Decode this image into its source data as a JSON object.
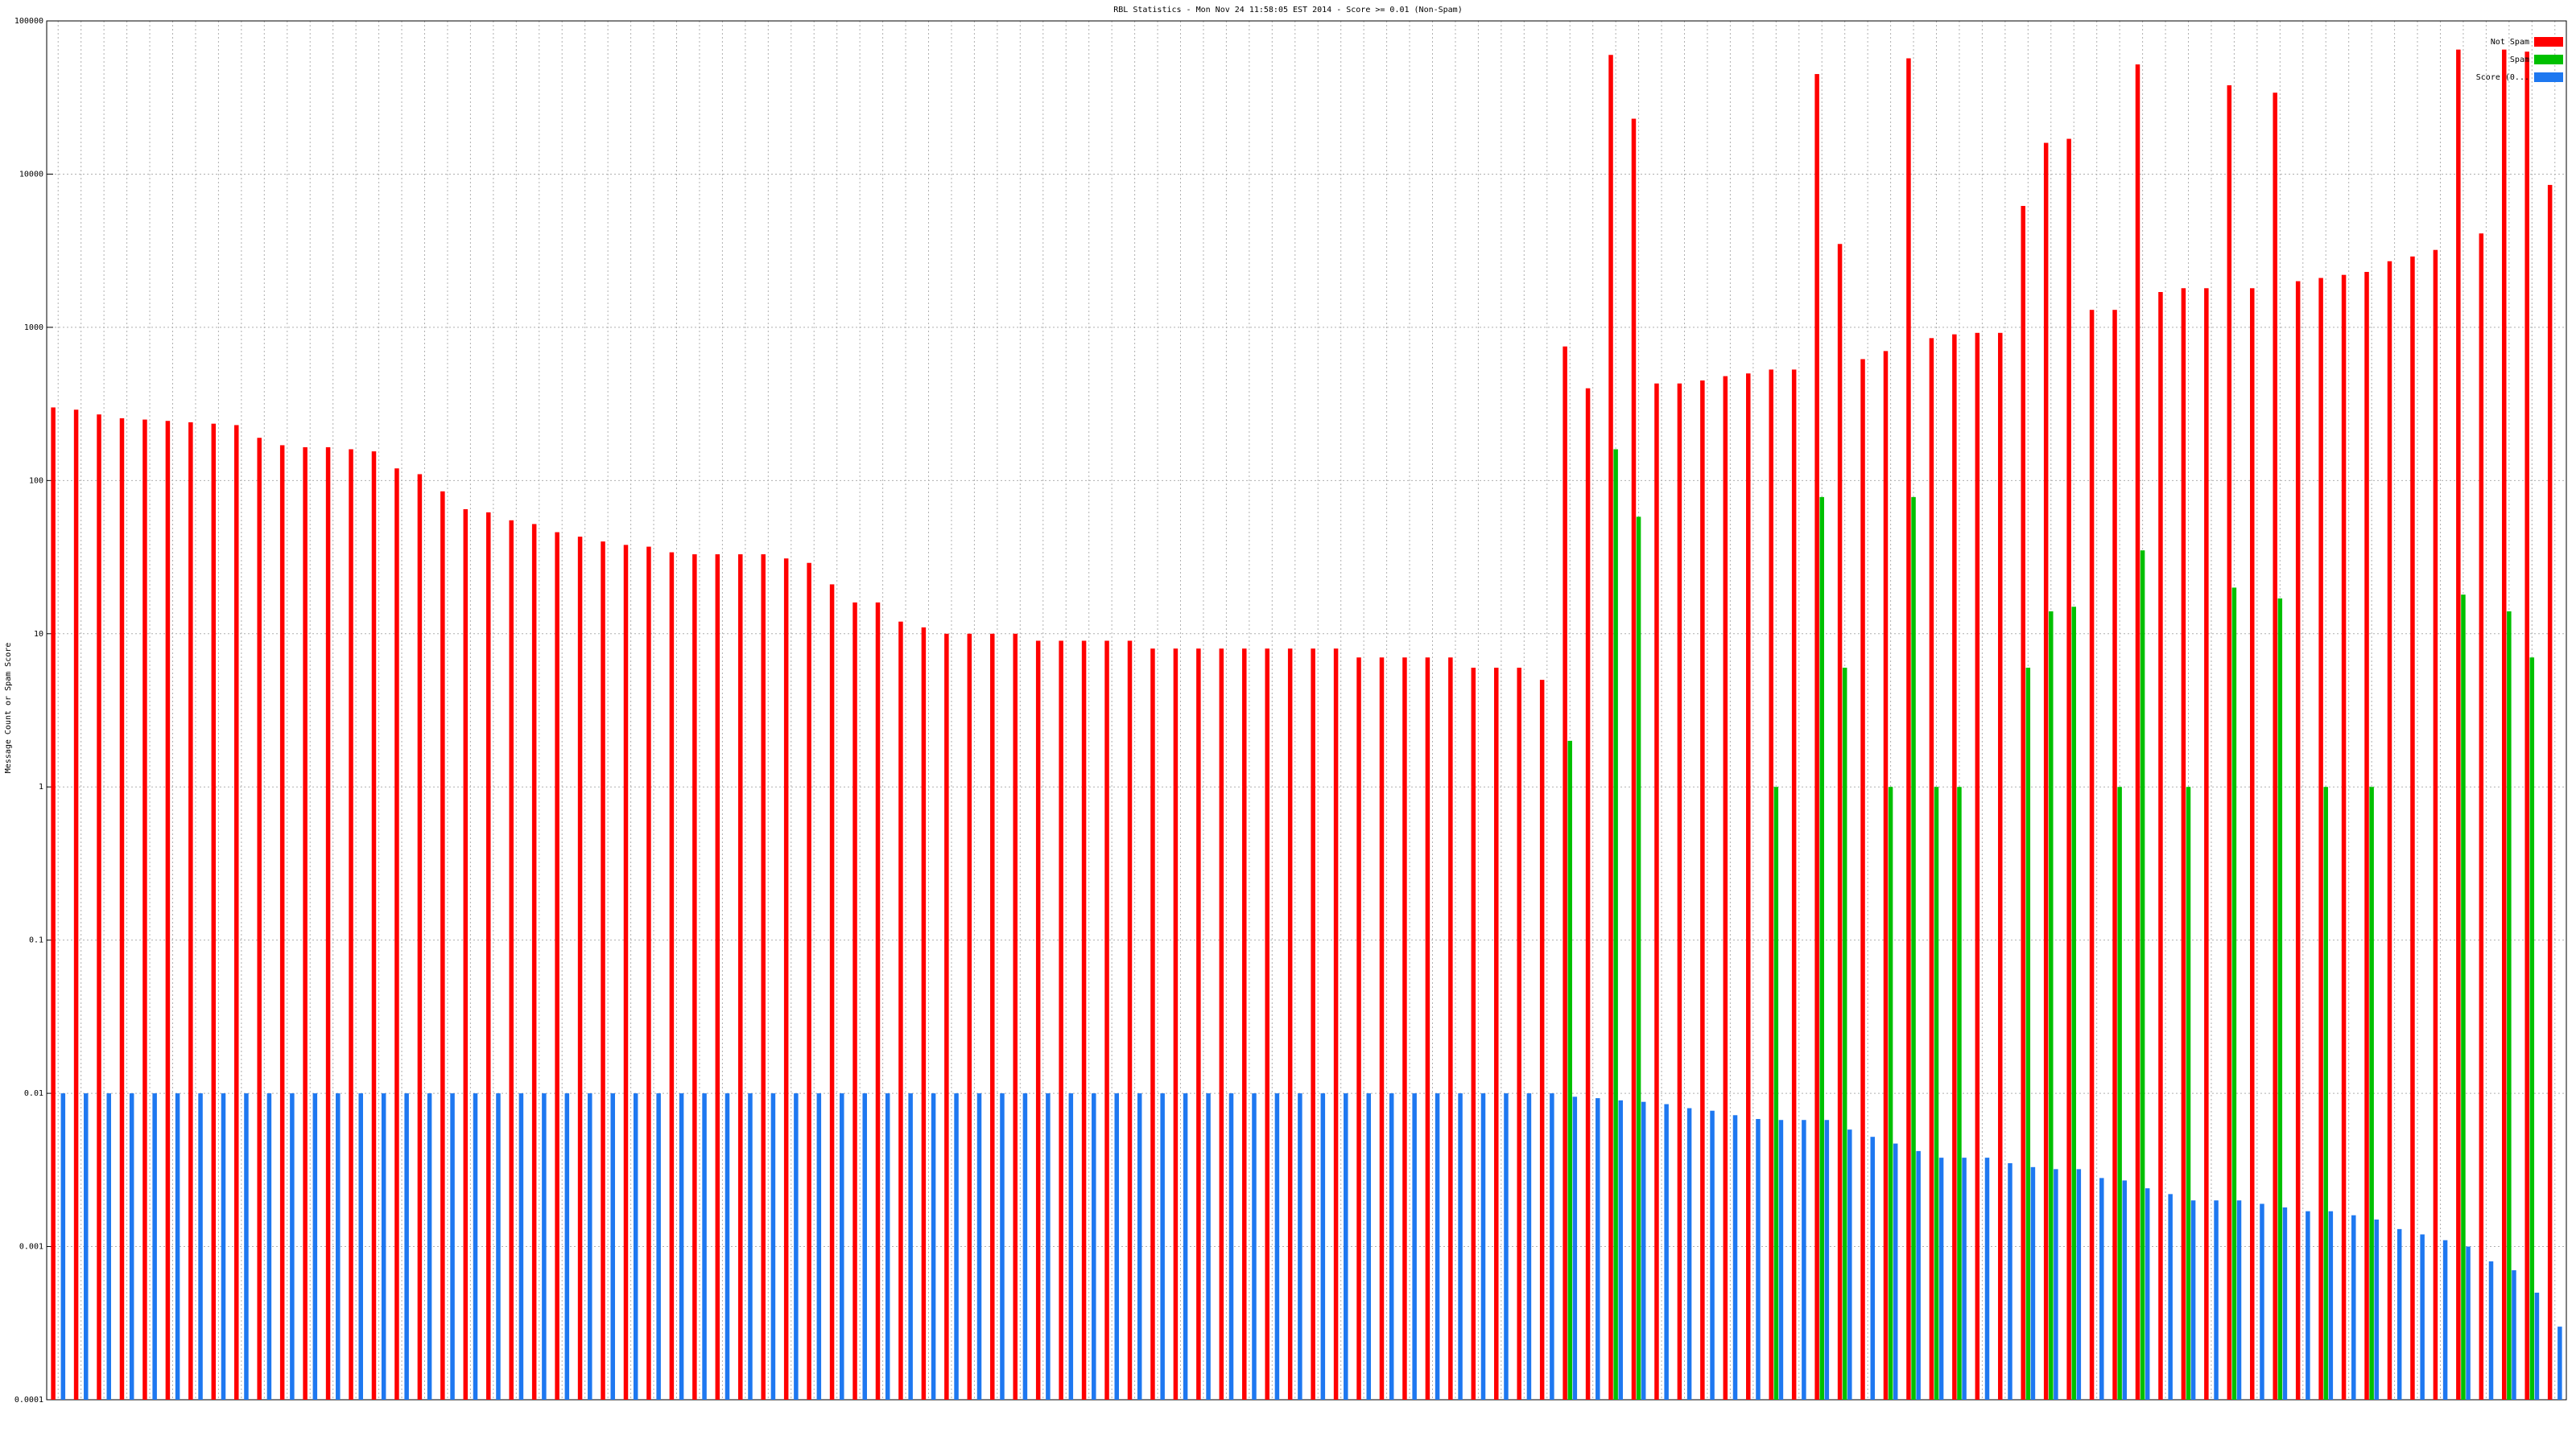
{
  "chart_data": {
    "type": "bar",
    "title": "RBL Statistics - Mon Nov 24 11:58:05 EST 2014 - Score >= 0.01 (Non-Spam)",
    "y_label": "Message Count or Spam Score",
    "log_y": true,
    "grid": true,
    "legend": "upper right",
    "ylim": [
      0.0001,
      100000
    ],
    "yticks": [
      0.0001,
      0.001,
      0.01,
      0.1,
      1,
      10,
      100,
      1000,
      10000,
      100000
    ],
    "categories": [
      null,
      null,
      null,
      null,
      null,
      null,
      null,
      null,
      null,
      null,
      null,
      null,
      null,
      null,
      null,
      null,
      null,
      null,
      null,
      null,
      null,
      null,
      null,
      null,
      null,
      null,
      null,
      null,
      null,
      null,
      null,
      null,
      null,
      null,
      null,
      null,
      null,
      null,
      null,
      null,
      null,
      null,
      null,
      null,
      null,
      null,
      null,
      null,
      null,
      null,
      null,
      null,
      null,
      null,
      null,
      null,
      null,
      null,
      null,
      null,
      null,
      null,
      null,
      null,
      null,
      null,
      null,
      null,
      null,
      null,
      null,
      null,
      null,
      null,
      null,
      null,
      null,
      null,
      null,
      null,
      null,
      null,
      null,
      null,
      null,
      null,
      null,
      null,
      null,
      null,
      null,
      null,
      null,
      null,
      null,
      null,
      null,
      null,
      null,
      null,
      null,
      null,
      null,
      null,
      null,
      null,
      null,
      null,
      null,
      null
    ],
    "series": [
      {
        "name": "Not Spam",
        "color": "#ff0000",
        "values": [
          300,
          290,
          270,
          255,
          250,
          245,
          240,
          235,
          230,
          190,
          170,
          165,
          165,
          160,
          155,
          120,
          110,
          85,
          65,
          62,
          55,
          52,
          46,
          43,
          40,
          38,
          37,
          34,
          33,
          33,
          33,
          33,
          31,
          29,
          21,
          16,
          16,
          12,
          11,
          10,
          10,
          10,
          10,
          9,
          9,
          9,
          9,
          9,
          8,
          8,
          8,
          8,
          8,
          8,
          8,
          8,
          8,
          7,
          7,
          7,
          7,
          7,
          6,
          6,
          6,
          5,
          750,
          400,
          60000,
          23000,
          430,
          430,
          450,
          480,
          500,
          530,
          530,
          45000,
          3500,
          620,
          700,
          57000,
          850,
          900,
          920,
          920,
          6200,
          16000,
          17000,
          1300,
          1300,
          52000,
          1700,
          1800,
          1800,
          38000,
          1800,
          34000,
          2000,
          2100,
          2200,
          2300,
          2700,
          2900,
          3200,
          65000,
          4100,
          65000,
          63000,
          8500
        ]
      },
      {
        "name": "Spam",
        "color": "#00c000",
        "values": [
          null,
          null,
          null,
          null,
          null,
          null,
          null,
          null,
          null,
          null,
          null,
          null,
          null,
          null,
          null,
          null,
          null,
          null,
          null,
          null,
          null,
          null,
          null,
          null,
          null,
          null,
          null,
          null,
          null,
          null,
          null,
          null,
          null,
          null,
          null,
          null,
          null,
          null,
          null,
          null,
          null,
          null,
          null,
          null,
          null,
          null,
          null,
          null,
          null,
          null,
          null,
          null,
          null,
          null,
          null,
          null,
          null,
          null,
          null,
          null,
          null,
          null,
          null,
          null,
          null,
          null,
          2,
          null,
          160,
          58,
          null,
          null,
          null,
          null,
          null,
          1,
          null,
          78,
          6,
          null,
          1,
          78,
          1,
          1,
          null,
          null,
          6,
          14,
          15,
          null,
          1,
          35,
          null,
          1,
          null,
          20,
          null,
          17,
          null,
          1,
          null,
          1,
          null,
          null,
          null,
          18,
          null,
          14,
          7,
          null
        ]
      },
      {
        "name": "Score (0...",
        "color": "#1e78f0",
        "values": [
          0.01,
          0.01,
          0.01,
          0.01,
          0.01,
          0.01,
          0.01,
          0.01,
          0.01,
          0.01,
          0.01,
          0.01,
          0.01,
          0.01,
          0.01,
          0.01,
          0.01,
          0.01,
          0.01,
          0.01,
          0.01,
          0.01,
          0.01,
          0.01,
          0.01,
          0.01,
          0.01,
          0.01,
          0.01,
          0.01,
          0.01,
          0.01,
          0.01,
          0.01,
          0.01,
          0.01,
          0.01,
          0.01,
          0.01,
          0.01,
          0.01,
          0.01,
          0.01,
          0.01,
          0.01,
          0.01,
          0.01,
          0.01,
          0.01,
          0.01,
          0.01,
          0.01,
          0.01,
          0.01,
          0.01,
          0.01,
          0.01,
          0.01,
          0.01,
          0.01,
          0.01,
          0.01,
          0.01,
          0.01,
          0.01,
          0.01,
          0.0095,
          0.0093,
          0.009,
          0.0088,
          0.0085,
          0.008,
          0.0077,
          0.0072,
          0.0068,
          0.0067,
          0.0067,
          0.0067,
          0.0058,
          0.0052,
          0.0047,
          0.0042,
          0.0038,
          0.0038,
          0.0038,
          0.0035,
          0.0033,
          0.0032,
          0.0032,
          0.0028,
          0.0027,
          0.0024,
          0.0022,
          0.002,
          0.002,
          0.002,
          0.0019,
          0.0018,
          0.0017,
          0.0017,
          0.0016,
          0.0015,
          0.0013,
          0.0012,
          0.0011,
          0.001,
          0.0008,
          0.0007,
          0.0005,
          0.0003
        ]
      }
    ]
  }
}
